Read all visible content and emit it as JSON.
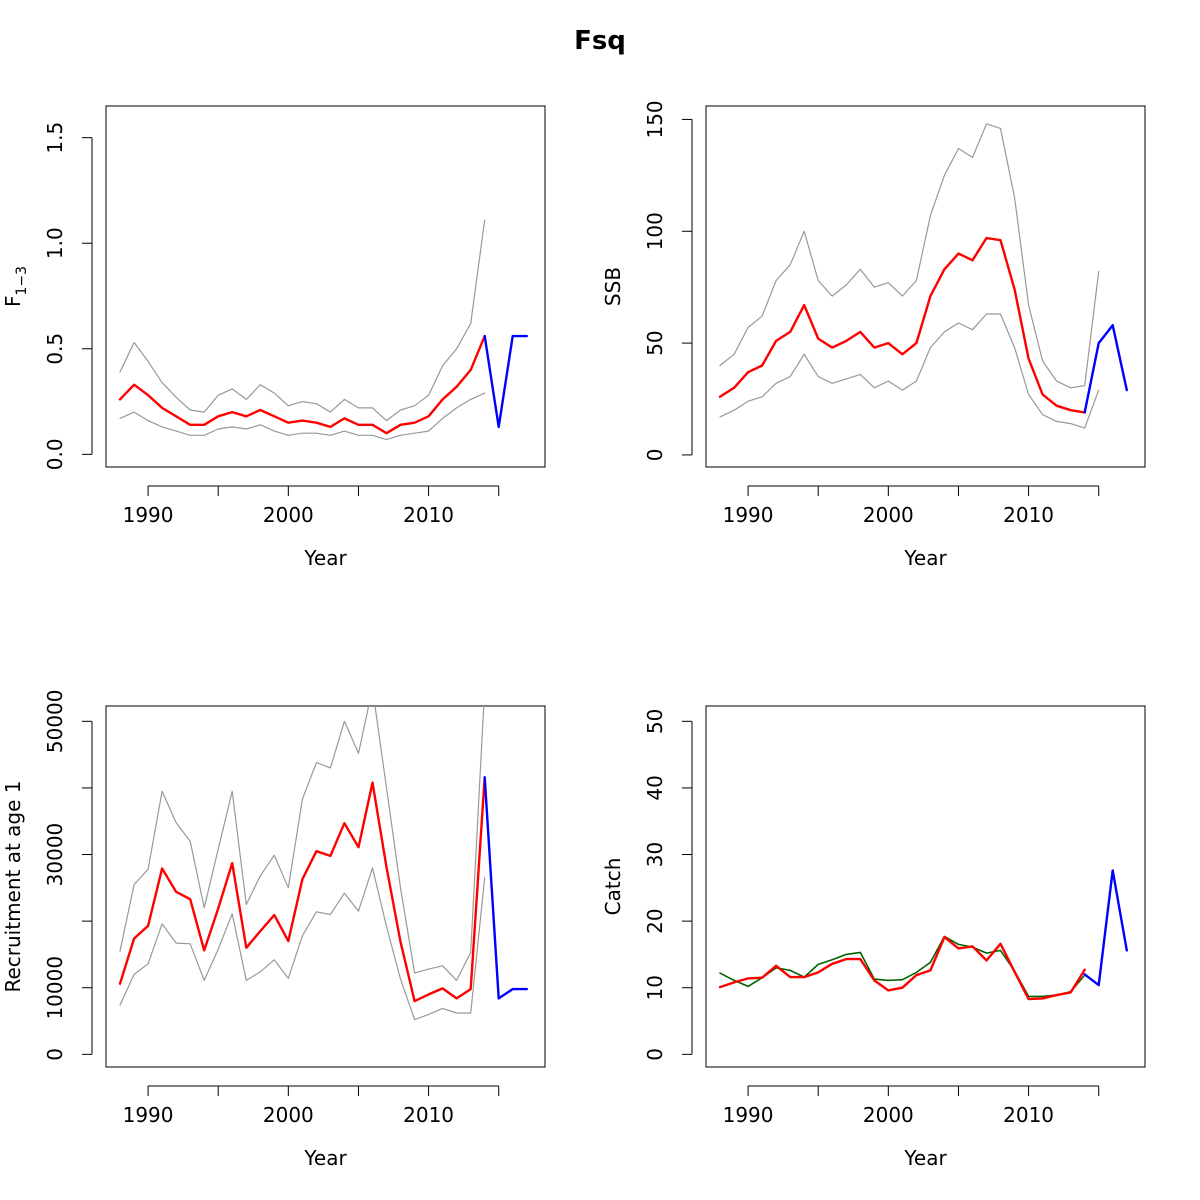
{
  "title": "Fsq",
  "chart_data": [
    {
      "type": "line",
      "ylabel_main": "F",
      "ylabel_sub": "1−3",
      "xlabel": "Year",
      "xlim": [
        1987,
        2018.3
      ],
      "ylim": [
        -0.06,
        1.65
      ],
      "xticks": [
        1990,
        1995,
        2000,
        2005,
        2010,
        2015
      ],
      "xtick_labels": [
        "1990",
        "",
        "2000",
        "",
        "2010",
        ""
      ],
      "yticks": [
        0,
        0.5,
        1.0,
        1.5
      ],
      "ytick_labels": [
        "0.0",
        "0.5",
        "1.0",
        "1.5"
      ],
      "series": [
        {
          "x": [
            1988,
            1989,
            1990,
            1991,
            1992,
            1993,
            1994,
            1995,
            1996,
            1997,
            1998,
            1999,
            2000,
            2001,
            2002,
            2003,
            2004,
            2005,
            2006,
            2007,
            2008,
            2009,
            2010,
            2011,
            2012,
            2013,
            2014
          ],
          "values": [
            0.39,
            0.53,
            0.44,
            0.34,
            0.27,
            0.21,
            0.2,
            0.28,
            0.31,
            0.26,
            0.33,
            0.29,
            0.23,
            0.25,
            0.24,
            0.2,
            0.26,
            0.22,
            0.22,
            0.16,
            0.21,
            0.23,
            0.28,
            0.42,
            0.5,
            0.62,
            1.11
          ],
          "color": "#999999",
          "width": 1.2
        },
        {
          "x": [
            1988,
            1989,
            1990,
            1991,
            1992,
            1993,
            1994,
            1995,
            1996,
            1997,
            1998,
            1999,
            2000,
            2001,
            2002,
            2003,
            2004,
            2005,
            2006,
            2007,
            2008,
            2009,
            2010,
            2011,
            2012,
            2013,
            2014
          ],
          "values": [
            0.17,
            0.2,
            0.16,
            0.13,
            0.11,
            0.09,
            0.09,
            0.12,
            0.13,
            0.12,
            0.14,
            0.11,
            0.09,
            0.1,
            0.1,
            0.09,
            0.11,
            0.09,
            0.09,
            0.07,
            0.09,
            0.1,
            0.11,
            0.17,
            0.22,
            0.26,
            0.29
          ],
          "color": "#999999",
          "width": 1.2
        },
        {
          "x": [
            1988,
            1989,
            1990,
            1991,
            1992,
            1993,
            1994,
            1995,
            1996,
            1997,
            1998,
            1999,
            2000,
            2001,
            2002,
            2003,
            2004,
            2005,
            2006,
            2007,
            2008,
            2009,
            2010,
            2011,
            2012,
            2013,
            2014
          ],
          "values": [
            0.26,
            0.33,
            0.28,
            0.22,
            0.18,
            0.14,
            0.14,
            0.18,
            0.2,
            0.18,
            0.21,
            0.18,
            0.15,
            0.16,
            0.15,
            0.13,
            0.17,
            0.14,
            0.14,
            0.1,
            0.14,
            0.15,
            0.18,
            0.26,
            0.32,
            0.4,
            0.56
          ],
          "color": "#ff0000",
          "width": 2.4
        },
        {
          "x": [
            2014,
            2015,
            2016,
            2017
          ],
          "values": [
            0.56,
            0.13,
            0.56,
            0.56
          ],
          "color": "#0000ff",
          "width": 2.4
        }
      ]
    },
    {
      "type": "line",
      "ylabel_main": "SSB",
      "ylabel_sub": "",
      "xlabel": "Year",
      "xlim": [
        1987,
        2018.3
      ],
      "ylim": [
        -5.4,
        156
      ],
      "xticks": [
        1990,
        1995,
        2000,
        2005,
        2010,
        2015
      ],
      "xtick_labels": [
        "1990",
        "",
        "2000",
        "",
        "2010",
        ""
      ],
      "yticks": [
        0,
        50,
        100,
        150
      ],
      "ytick_labels": [
        "0",
        "50",
        "100",
        "150"
      ],
      "series": [
        {
          "x": [
            1988,
            1989,
            1990,
            1991,
            1992,
            1993,
            1994,
            1995,
            1996,
            1997,
            1998,
            1999,
            2000,
            2001,
            2002,
            2003,
            2004,
            2005,
            2006,
            2007,
            2008,
            2009,
            2010,
            2011,
            2012,
            2013,
            2014,
            2015
          ],
          "values": [
            40,
            45,
            57,
            62,
            78,
            85,
            100,
            78,
            71,
            76,
            83,
            75,
            77,
            71,
            78,
            107,
            125,
            137,
            133,
            148,
            146,
            115,
            67,
            42,
            33,
            30,
            31,
            82
          ],
          "color": "#999999",
          "width": 1.2
        },
        {
          "x": [
            1988,
            1989,
            1990,
            1991,
            1992,
            1993,
            1994,
            1995,
            1996,
            1997,
            1998,
            1999,
            2000,
            2001,
            2002,
            2003,
            2004,
            2005,
            2006,
            2007,
            2008,
            2009,
            2010,
            2011,
            2012,
            2013,
            2014,
            2015
          ],
          "values": [
            17,
            20,
            24,
            26,
            32,
            35,
            45,
            35,
            32,
            34,
            36,
            30,
            33,
            29,
            33,
            48,
            55,
            59,
            56,
            63,
            63,
            48,
            27,
            18,
            15,
            14,
            12,
            29
          ],
          "color": "#999999",
          "width": 1.2
        },
        {
          "x": [
            1988,
            1989,
            1990,
            1991,
            1992,
            1993,
            1994,
            1995,
            1996,
            1997,
            1998,
            1999,
            2000,
            2001,
            2002,
            2003,
            2004,
            2005,
            2006,
            2007,
            2008,
            2009,
            2010,
            2011,
            2012,
            2013,
            2014
          ],
          "values": [
            26,
            30,
            37,
            40,
            51,
            55,
            67,
            52,
            48,
            51,
            55,
            48,
            50,
            45,
            50,
            71,
            83,
            90,
            87,
            97,
            96,
            74,
            43,
            27,
            22,
            20,
            19
          ],
          "color": "#ff0000",
          "width": 2.4
        },
        {
          "x": [
            2014,
            2015,
            2016,
            2017
          ],
          "values": [
            19,
            50,
            58,
            29
          ],
          "color": "#0000ff",
          "width": 2.4
        }
      ]
    },
    {
      "type": "line",
      "ylabel_main": "Recruitment at age 1",
      "ylabel_sub": "",
      "xlabel": "Year",
      "xlim": [
        1987,
        2018.3
      ],
      "ylim": [
        -1900,
        52300
      ],
      "xticks": [
        1990,
        1995,
        2000,
        2005,
        2010,
        2015
      ],
      "xtick_labels": [
        "1990",
        "",
        "2000",
        "",
        "2010",
        ""
      ],
      "yticks": [
        0,
        10000,
        20000,
        30000,
        40000,
        50000
      ],
      "ytick_labels": [
        "0",
        "10000",
        "",
        "30000",
        "",
        "50000"
      ],
      "series": [
        {
          "x": [
            1988,
            1989,
            1990,
            1991,
            1992,
            1993,
            1994,
            1995,
            1996,
            1997,
            1998,
            1999,
            2000,
            2001,
            2002,
            2003,
            2004,
            2005,
            2006,
            2007,
            2008,
            2009,
            2010,
            2011,
            2012,
            2013,
            2014
          ],
          "values": [
            15500,
            25500,
            27800,
            39500,
            34800,
            32000,
            22000,
            30800,
            39500,
            22500,
            26800,
            29900,
            25000,
            38300,
            43800,
            43000,
            50000,
            45200,
            55000,
            40000,
            25000,
            12200,
            12800,
            13300,
            11100,
            15300,
            55000
          ],
          "color": "#999999",
          "width": 1.2
        },
        {
          "x": [
            1988,
            1989,
            1990,
            1991,
            1992,
            1993,
            1994,
            1995,
            1996,
            1997,
            1998,
            1999,
            2000,
            2001,
            2002,
            2003,
            2004,
            2005,
            2006,
            2007,
            2008,
            2009,
            2010,
            2011,
            2012,
            2013,
            2014
          ],
          "values": [
            7400,
            12000,
            13600,
            19600,
            16700,
            16600,
            11100,
            15800,
            21100,
            11100,
            12400,
            14200,
            11400,
            17800,
            21400,
            21000,
            24200,
            21500,
            28000,
            19200,
            11300,
            5200,
            6000,
            6900,
            6200,
            6200,
            26500
          ],
          "color": "#999999",
          "width": 1.2
        },
        {
          "x": [
            1988,
            1989,
            1990,
            1991,
            1992,
            1993,
            1994,
            1995,
            1996,
            1997,
            1998,
            1999,
            2000,
            2001,
            2002,
            2003,
            2004,
            2005,
            2006,
            2007,
            2008,
            2009,
            2010,
            2011,
            2012,
            2013,
            2014
          ],
          "values": [
            10600,
            17400,
            19300,
            27900,
            24400,
            23300,
            15600,
            21900,
            28700,
            16000,
            18500,
            20900,
            17000,
            26300,
            30500,
            29800,
            34700,
            31100,
            40800,
            28100,
            16900,
            8000,
            9000,
            9900,
            8400,
            9800,
            41600
          ],
          "color": "#ff0000",
          "width": 2.4
        },
        {
          "x": [
            2014,
            2015,
            2016,
            2017
          ],
          "values": [
            41600,
            8400,
            9800,
            9800
          ],
          "color": "#0000ff",
          "width": 2.4
        }
      ]
    },
    {
      "type": "line",
      "ylabel_main": "Catch",
      "ylabel_sub": "",
      "xlabel": "Year",
      "xlim": [
        1987,
        2018.3
      ],
      "ylim": [
        -1.9,
        52.3
      ],
      "xticks": [
        1990,
        1995,
        2000,
        2005,
        2010,
        2015
      ],
      "xtick_labels": [
        "1990",
        "",
        "2000",
        "",
        "2010",
        ""
      ],
      "yticks": [
        0,
        10,
        20,
        30,
        40,
        50
      ],
      "ytick_labels": [
        "0",
        "10",
        "20",
        "30",
        "40",
        "50"
      ],
      "series": [
        {
          "x": [
            1988,
            1989,
            1990,
            1991,
            1992,
            1993,
            1994,
            1995,
            1996,
            1997,
            1998,
            1999,
            2000,
            2001,
            2002,
            2003,
            2004,
            2005,
            2006,
            2007,
            2008,
            2009,
            2010,
            2011,
            2012,
            2013,
            2014
          ],
          "values": [
            12.2,
            11.1,
            10.2,
            11.5,
            13.0,
            12.6,
            11.6,
            13.5,
            14.2,
            15.0,
            15.3,
            11.3,
            11.1,
            11.2,
            12.3,
            13.8,
            17.7,
            16.5,
            16.1,
            15.2,
            15.6,
            12.5,
            8.7,
            8.7,
            8.9,
            9.4,
            11.9
          ],
          "color": "#006400",
          "width": 1.6
        },
        {
          "x": [
            1988,
            1989,
            1990,
            1991,
            1992,
            1993,
            1994,
            1995,
            1996,
            1997,
            1998,
            1999,
            2000,
            2001,
            2002,
            2003,
            2004,
            2005,
            2006,
            2007,
            2008,
            2009,
            2010,
            2011,
            2012,
            2013,
            2014
          ],
          "values": [
            10.1,
            10.8,
            11.4,
            11.5,
            13.3,
            11.6,
            11.6,
            12.3,
            13.6,
            14.3,
            14.3,
            11.1,
            9.6,
            10.0,
            11.9,
            12.6,
            17.6,
            15.9,
            16.2,
            14.1,
            16.6,
            12.4,
            8.3,
            8.4,
            8.9,
            9.3,
            12.7
          ],
          "color": "#ff0000",
          "width": 2.4
        },
        {
          "x": [
            2014,
            2015,
            2016,
            2017
          ],
          "values": [
            12.0,
            10.4,
            27.6,
            15.6
          ],
          "color": "#0000ff",
          "width": 2.4
        }
      ]
    }
  ]
}
